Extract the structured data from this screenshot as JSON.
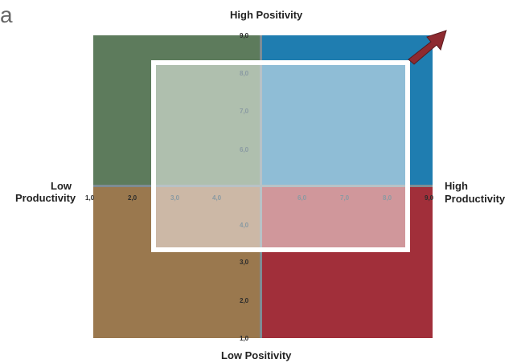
{
  "corner_letter": "a",
  "labels": {
    "top": "High Positivity",
    "bottom": "Low Positivity",
    "left_line1": "Low",
    "left_line2": "Productivity",
    "right_line1": "High",
    "right_line2": "Productivity"
  },
  "ticks": {
    "y": [
      "9,0",
      "8,0",
      "7,0",
      "6,0",
      "4,0",
      "3,0",
      "2,0",
      "1,0"
    ],
    "x": [
      "1,0",
      "2,0",
      "3,0",
      "4,0",
      "6,0",
      "7,0",
      "8,0",
      "9,0"
    ]
  },
  "colors": {
    "top_left": "#5d7b5c",
    "top_right": "#1f7db0",
    "bottom_left": "#9a784e",
    "bottom_right": "#a12f3a",
    "arrow": "#8e2a30"
  }
}
